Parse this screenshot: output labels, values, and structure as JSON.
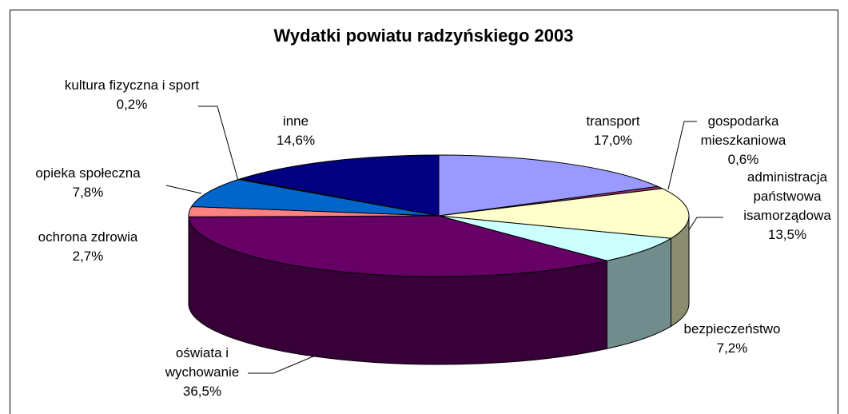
{
  "chart_data": {
    "type": "pie3d",
    "title": "Wydatki powiatu radzyńskiego 2003",
    "categories": [
      "transport",
      "gospodarka mieszkaniowa",
      "administracja państwowa isamorządowa",
      "bezpieczeństwo",
      "oświata i wychowanie",
      "ochrona zdrowia",
      "opieka społeczna",
      "kultura fizyczna i sport",
      "inne"
    ],
    "values": [
      17.0,
      0.6,
      13.5,
      7.2,
      36.5,
      2.7,
      7.8,
      0.2,
      14.6
    ],
    "value_labels": [
      "17,0%",
      "0,6%",
      "13,5%",
      "7,2%",
      "36,5%",
      "2,7%",
      "7,8%",
      "0,2%",
      "14,6%"
    ],
    "colors": [
      "#9999ff",
      "#993366",
      "#ffffcc",
      "#ccffff",
      "#660066",
      "#ff8080",
      "#0066cc",
      "#ccccff",
      "#000080"
    ]
  }
}
